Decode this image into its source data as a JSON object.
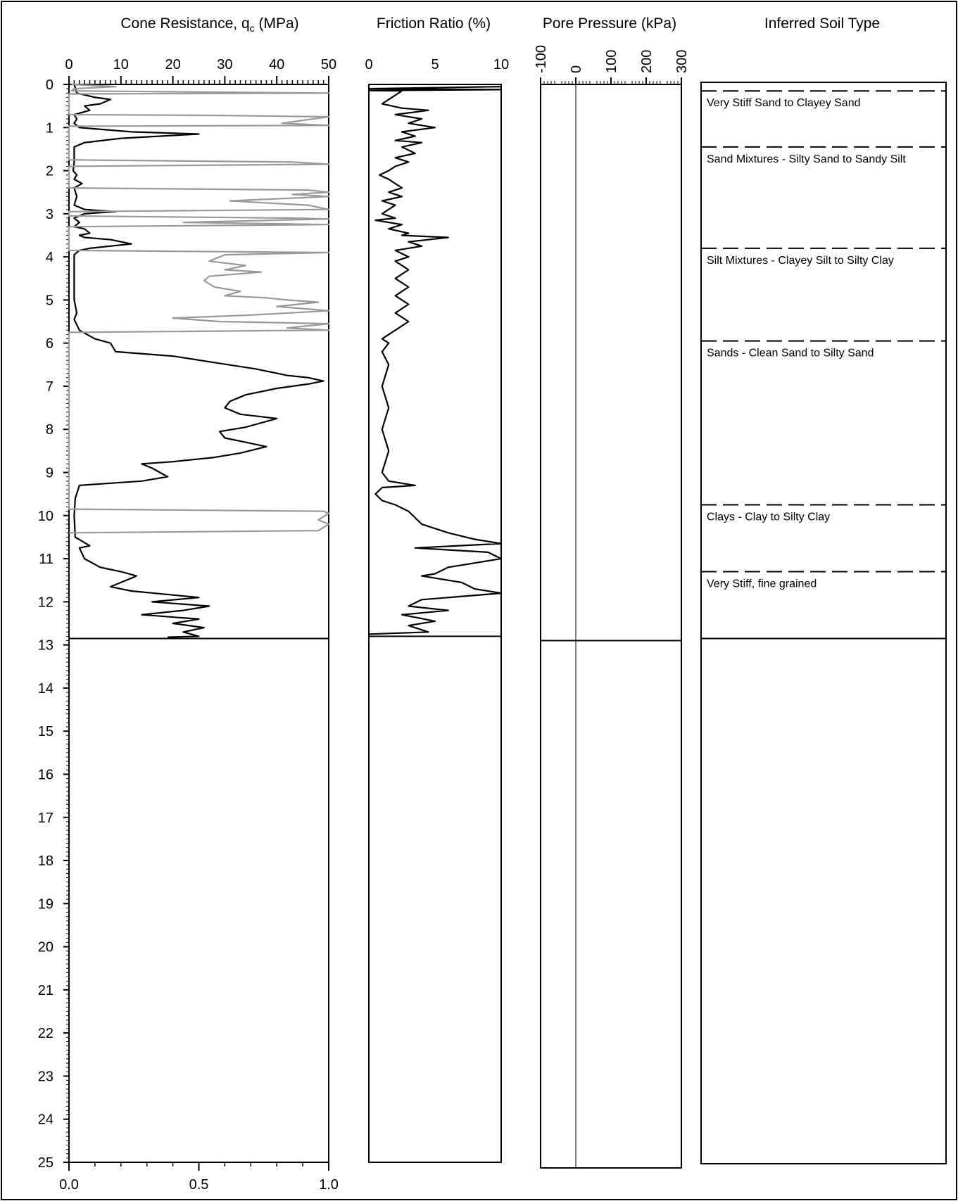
{
  "chart_data": [
    {
      "type": "line",
      "title": "Cone Resistance, q",
      "title_sub": "c",
      "title_unit": " (MPa)",
      "y_ticks": [
        "0",
        "1",
        "2",
        "3",
        "4",
        "5",
        "6",
        "7",
        "8",
        "9",
        "10",
        "11",
        "12",
        "13",
        "14",
        "15",
        "16",
        "17",
        "18",
        "19",
        "20",
        "21",
        "22",
        "23",
        "24",
        "25"
      ],
      "ylim": [
        0,
        25
      ],
      "xlim": [
        0,
        50
      ],
      "x_ticks": [
        "0",
        "10",
        "20",
        "30",
        "40",
        "50"
      ],
      "secondary_xlim": [
        0,
        1
      ],
      "secondary_x_ticks": [
        "0.0",
        "0.5",
        "1.0"
      ],
      "end_depth": 12.85,
      "series": [
        {
          "color": "#000000",
          "points": [
            [
              1,
              0
            ],
            [
              1.5,
              0.2
            ],
            [
              5,
              0.3
            ],
            [
              8,
              0.35
            ],
            [
              6,
              0.45
            ],
            [
              3,
              0.5
            ],
            [
              4,
              0.6
            ],
            [
              1,
              0.7
            ],
            [
              1.5,
              0.8
            ],
            [
              1,
              0.9
            ],
            [
              2,
              1.0
            ],
            [
              12,
              1.1
            ],
            [
              25,
              1.15
            ],
            [
              10,
              1.25
            ],
            [
              3,
              1.35
            ],
            [
              1,
              1.45
            ],
            [
              1,
              1.8
            ],
            [
              0.8,
              2.0
            ],
            [
              1.5,
              2.1
            ],
            [
              1,
              2.2
            ],
            [
              2.5,
              2.3
            ],
            [
              1,
              2.4
            ],
            [
              1.5,
              2.6
            ],
            [
              1,
              2.8
            ],
            [
              3,
              2.9
            ],
            [
              9,
              2.95
            ],
            [
              3,
              3.0
            ],
            [
              1,
              3.1
            ],
            [
              2,
              3.2
            ],
            [
              1,
              3.3
            ],
            [
              3,
              3.35
            ],
            [
              4,
              3.45
            ],
            [
              2,
              3.5
            ],
            [
              3,
              3.55
            ],
            [
              8,
              3.6
            ],
            [
              12,
              3.7
            ],
            [
              4,
              3.8
            ],
            [
              2,
              3.85
            ],
            [
              1,
              3.95
            ],
            [
              1,
              5.0
            ],
            [
              1.5,
              5.3
            ],
            [
              1,
              5.45
            ],
            [
              2,
              5.7
            ],
            [
              5,
              5.9
            ],
            [
              8,
              6.0
            ],
            [
              9,
              6.2
            ],
            [
              20,
              6.3
            ],
            [
              28,
              6.45
            ],
            [
              36,
              6.6
            ],
            [
              42,
              6.75
            ],
            [
              46,
              6.8
            ],
            [
              49,
              6.88
            ],
            [
              46,
              6.95
            ],
            [
              40,
              7.05
            ],
            [
              34,
              7.2
            ],
            [
              31,
              7.35
            ],
            [
              30,
              7.5
            ],
            [
              33,
              7.65
            ],
            [
              40,
              7.75
            ],
            [
              37,
              7.85
            ],
            [
              34,
              7.95
            ],
            [
              29,
              8.05
            ],
            [
              30,
              8.2
            ],
            [
              34,
              8.3
            ],
            [
              38,
              8.4
            ],
            [
              33,
              8.55
            ],
            [
              28,
              8.65
            ],
            [
              20,
              8.75
            ],
            [
              14,
              8.8
            ],
            [
              16,
              8.9
            ],
            [
              19,
              9.1
            ],
            [
              14,
              9.2
            ],
            [
              8,
              9.25
            ],
            [
              2,
              9.3
            ],
            [
              1.2,
              9.6
            ],
            [
              1,
              10.0
            ],
            [
              1.2,
              10.5
            ],
            [
              4,
              10.7
            ],
            [
              2,
              10.75
            ],
            [
              3,
              11.0
            ],
            [
              6,
              11.2
            ],
            [
              10,
              11.3
            ],
            [
              13,
              11.4
            ],
            [
              12,
              11.45
            ],
            [
              10,
              11.55
            ],
            [
              8,
              11.65
            ],
            [
              12,
              11.75
            ],
            [
              25,
              11.9
            ],
            [
              16,
              12.0
            ],
            [
              27,
              12.1
            ],
            [
              22,
              12.2
            ],
            [
              14,
              12.3
            ],
            [
              25,
              12.4
            ],
            [
              20,
              12.5
            ],
            [
              26,
              12.6
            ],
            [
              22,
              12.7
            ],
            [
              25,
              12.8
            ],
            [
              19,
              12.82
            ]
          ]
        },
        {
          "color": "#999999",
          "points": [
            [
              0.5,
              0
            ],
            [
              9,
              0.05
            ],
            [
              1,
              0.1
            ],
            [
              0.5,
              0.15
            ],
            [
              50,
              0.2
            ],
            [
              0,
              0.22
            ],
            [
              0,
              0.7
            ],
            [
              29,
              0.72
            ],
            [
              50,
              0.75
            ],
            [
              41,
              0.9
            ],
            [
              50,
              0.95
            ],
            [
              0,
              0.97
            ],
            [
              0,
              1.75
            ],
            [
              43,
              1.8
            ],
            [
              50,
              1.85
            ],
            [
              0,
              1.9
            ],
            [
              0,
              2.4
            ],
            [
              46,
              2.45
            ],
            [
              50,
              2.5
            ],
            [
              43,
              2.55
            ],
            [
              50,
              2.6
            ],
            [
              31,
              2.7
            ],
            [
              46,
              2.8
            ],
            [
              50,
              2.9
            ],
            [
              0,
              2.95
            ],
            [
              0,
              3.05
            ],
            [
              43,
              3.1
            ],
            [
              50,
              3.12
            ],
            [
              22,
              3.2
            ],
            [
              50,
              3.25
            ],
            [
              0,
              3.3
            ],
            [
              0,
              3.85
            ],
            [
              50,
              3.9
            ],
            [
              30,
              3.95
            ],
            [
              27,
              4.1
            ],
            [
              34,
              4.2
            ],
            [
              30,
              4.3
            ],
            [
              37,
              4.35
            ],
            [
              27,
              4.45
            ],
            [
              26,
              4.55
            ],
            [
              28,
              4.7
            ],
            [
              33,
              4.8
            ],
            [
              30,
              4.9
            ],
            [
              38,
              4.95
            ],
            [
              42,
              5.0
            ],
            [
              48,
              5.05
            ],
            [
              40,
              5.15
            ],
            [
              50,
              5.25
            ],
            [
              35,
              5.35
            ],
            [
              20,
              5.42
            ],
            [
              29,
              5.5
            ],
            [
              50,
              5.55
            ],
            [
              42,
              5.65
            ],
            [
              50,
              5.7
            ],
            [
              0,
              5.75
            ],
            [
              0,
              9.85
            ],
            [
              49,
              9.9
            ],
            [
              50,
              9.95
            ],
            [
              48,
              10.1
            ],
            [
              50,
              10.2
            ],
            [
              48,
              10.35
            ],
            [
              0,
              10.4
            ]
          ]
        }
      ]
    },
    {
      "type": "line",
      "title": "Friction Ratio (%)",
      "xlim": [
        0,
        10
      ],
      "x_ticks": [
        "0",
        "5",
        "10"
      ],
      "ylim": [
        0,
        25
      ],
      "end_depth": 12.8,
      "series": [
        {
          "color": "#000000",
          "points": [
            [
              10,
              0.05
            ],
            [
              0,
              0.1
            ],
            [
              10,
              0.12
            ],
            [
              0,
              0.14
            ],
            [
              2.5,
              0.15
            ],
            [
              2,
              0.25
            ],
            [
              1.5,
              0.35
            ],
            [
              1,
              0.45
            ],
            [
              2.5,
              0.55
            ],
            [
              4.5,
              0.6
            ],
            [
              2,
              0.7
            ],
            [
              4,
              0.8
            ],
            [
              3,
              0.9
            ],
            [
              5,
              1.0
            ],
            [
              2.5,
              1.1
            ],
            [
              3.5,
              1.2
            ],
            [
              2,
              1.3
            ],
            [
              4,
              1.35
            ],
            [
              2.5,
              1.45
            ],
            [
              3.5,
              1.6
            ],
            [
              2,
              1.7
            ],
            [
              3,
              1.8
            ],
            [
              2,
              1.9
            ],
            [
              1.5,
              2.0
            ],
            [
              0.8,
              2.1
            ],
            [
              1.5,
              2.2
            ],
            [
              2.5,
              2.4
            ],
            [
              1.5,
              2.5
            ],
            [
              2.5,
              2.6
            ],
            [
              1,
              2.7
            ],
            [
              2,
              2.8
            ],
            [
              1,
              3.0
            ],
            [
              2,
              3.1
            ],
            [
              0.5,
              3.15
            ],
            [
              2.5,
              3.25
            ],
            [
              1.5,
              3.35
            ],
            [
              3,
              3.45
            ],
            [
              2.5,
              3.5
            ],
            [
              6,
              3.55
            ],
            [
              3,
              3.65
            ],
            [
              4,
              3.75
            ],
            [
              2,
              3.85
            ],
            [
              3,
              4.0
            ],
            [
              2,
              4.1
            ],
            [
              3,
              4.3
            ],
            [
              2,
              4.5
            ],
            [
              3,
              4.7
            ],
            [
              2,
              4.9
            ],
            [
              3,
              5.1
            ],
            [
              2,
              5.3
            ],
            [
              3,
              5.5
            ],
            [
              2,
              5.7
            ],
            [
              1,
              5.9
            ],
            [
              1.5,
              6.0
            ],
            [
              1,
              6.2
            ],
            [
              1.5,
              6.5
            ],
            [
              1,
              7.0
            ],
            [
              1.5,
              7.5
            ],
            [
              1,
              8.0
            ],
            [
              1.5,
              8.5
            ],
            [
              1,
              9.0
            ],
            [
              1.5,
              9.2
            ],
            [
              3.5,
              9.3
            ],
            [
              1,
              9.35
            ],
            [
              0.5,
              9.5
            ],
            [
              1,
              9.65
            ],
            [
              2,
              9.75
            ],
            [
              3,
              9.9
            ],
            [
              4,
              10.2
            ],
            [
              6,
              10.4
            ],
            [
              8,
              10.55
            ],
            [
              10,
              10.65
            ],
            [
              3.5,
              10.75
            ],
            [
              9,
              10.85
            ],
            [
              10,
              11.0
            ],
            [
              8,
              11.1
            ],
            [
              6,
              11.2
            ],
            [
              5,
              11.35
            ],
            [
              4,
              11.4
            ],
            [
              7,
              11.55
            ],
            [
              8,
              11.7
            ],
            [
              10,
              11.8
            ],
            [
              4,
              11.95
            ],
            [
              3,
              12.1
            ],
            [
              6,
              12.2
            ],
            [
              2.5,
              12.3
            ],
            [
              5,
              12.45
            ],
            [
              3,
              12.55
            ],
            [
              4.5,
              12.7
            ],
            [
              0,
              12.75
            ]
          ]
        }
      ]
    },
    {
      "type": "line",
      "title": "Pore Pressure (kPa)",
      "xlim": [
        -100,
        300
      ],
      "x_ticks": [
        "-100",
        "0",
        "100",
        "200",
        "300"
      ],
      "ylim": [
        0,
        25
      ],
      "end_depth": 12.9,
      "series": []
    },
    {
      "type": "table",
      "title": "Inferred Soil Type",
      "end_depth": 12.85,
      "layers": [
        {
          "top": 0.15,
          "label": "Very Stiff Sand to Clayey Sand"
        },
        {
          "top": 1.45,
          "label": "Sand Mixtures - Silty Sand to Sandy Silt"
        },
        {
          "top": 3.8,
          "label": "Silt Mixtures - Clayey Silt to Silty Clay"
        },
        {
          "top": 5.95,
          "label": "Sands - Clean Sand to Silty Sand"
        },
        {
          "top": 9.75,
          "label": "Clays - Clay to Silty Clay"
        },
        {
          "top": 11.3,
          "label": "Very Stiff, fine grained"
        }
      ]
    }
  ]
}
